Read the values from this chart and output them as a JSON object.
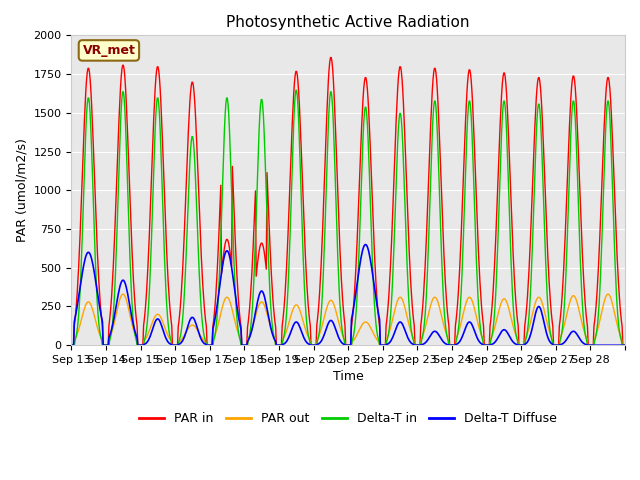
{
  "title": "Photosynthetic Active Radiation",
  "ylabel": "PAR (umol/m2/s)",
  "xlabel": "Time",
  "annotation": "VR_met",
  "ylim": [
    0,
    2000
  ],
  "bg_color": "#e8e8e8",
  "colors": {
    "par_in": "#ff0000",
    "par_out": "#ffa500",
    "delta_t_in": "#00cc00",
    "delta_t_diffuse": "#0000ff"
  },
  "legend_labels": [
    "PAR in",
    "PAR out",
    "Delta-T in",
    "Delta-T Diffuse"
  ],
  "x_ticks": [
    "Sep 13",
    "Sep 14",
    "Sep 15",
    "Sep 16",
    "Sep 17",
    "Sep 18",
    "Sep 19",
    "Sep 20",
    "Sep 21",
    "Sep 22",
    "Sep 23",
    "Sep 24",
    "Sep 25",
    "Sep 26",
    "Sep 27",
    "Sep 28"
  ],
  "n_days": 16,
  "pts_per_day": 48
}
